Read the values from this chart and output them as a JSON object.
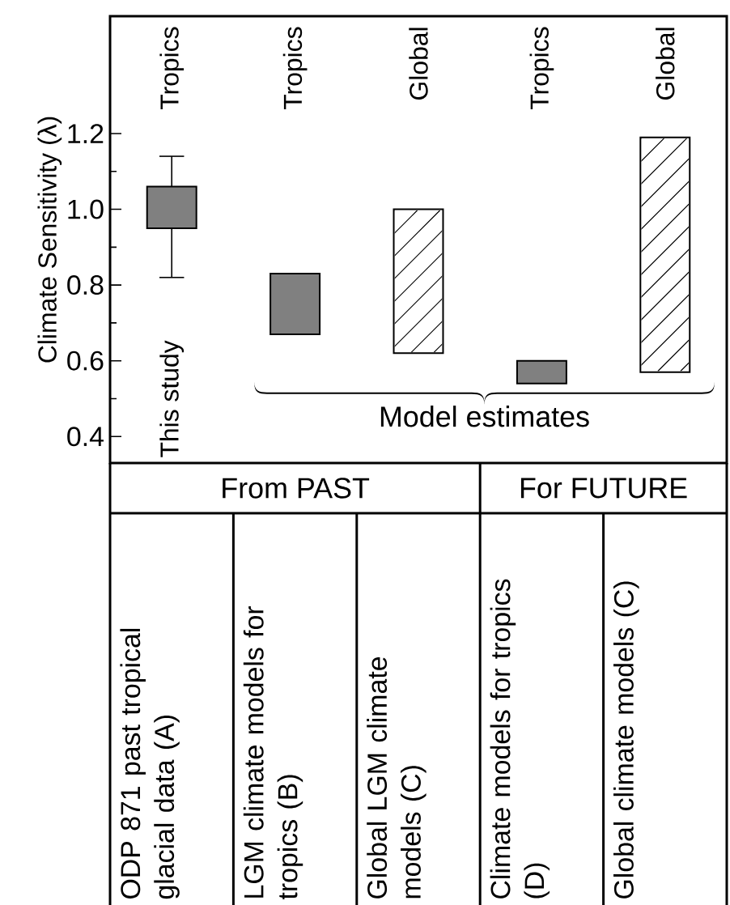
{
  "chart_data": {
    "type": "bar",
    "ylabel": "Climate Sensitivity (λ)",
    "categories": [
      "ODP 871 past tropical glacial data (A)",
      "LGM climate models for tropics (B)",
      "Global LGM climate models (C)",
      "Climate models for tropics (D)",
      "Global climate models (C)"
    ],
    "base": [
      0.95,
      0.67,
      0.62,
      0.54,
      0.57
    ],
    "values": [
      0.11,
      0.16,
      0.38,
      0.06,
      0.62
    ],
    "colors": [
      "#808080",
      "#808080",
      "#ffffff",
      "#808080",
      "#ffffff"
    ],
    "errors": [
      [
        0.82,
        1.14
      ],
      null,
      null,
      null,
      null
    ],
    "ylim": [
      0.33,
      1.51
    ],
    "yticks": [
      0.4,
      0.6,
      0.8,
      {
        "value": 1.0,
        "label": "1.0"
      },
      1.2
    ],
    "annotations": [
      "Tropics",
      "Tropics",
      "Global",
      "Tropics",
      "Global",
      "This study",
      "Model estimates",
      "From PAST",
      "For FUTURE"
    ]
  }
}
